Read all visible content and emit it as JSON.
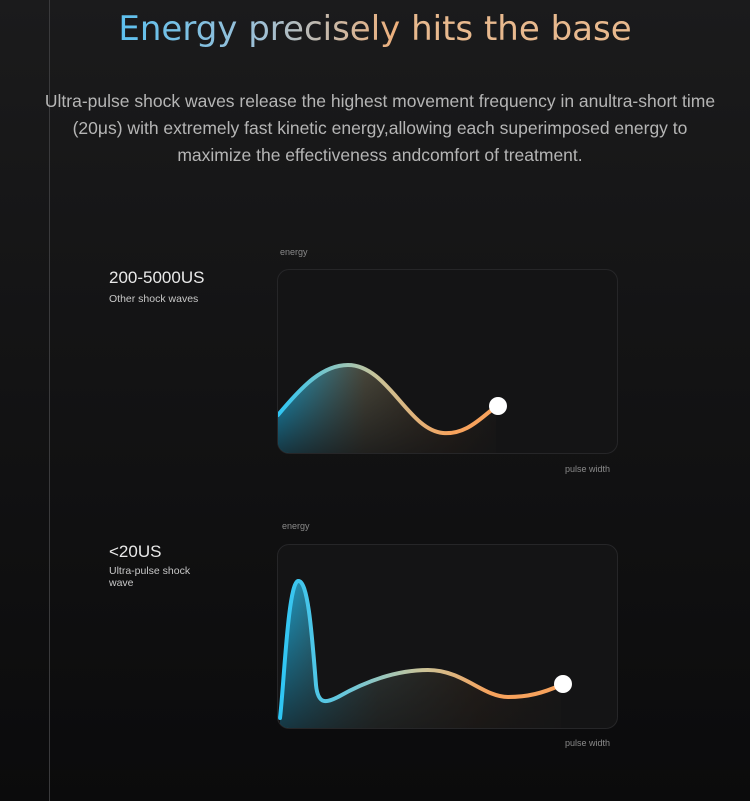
{
  "header": {
    "title_part1": "Energy precisely",
    "title_part2": "hits the base",
    "description": "Ultra-pulse shock waves release the highest movement frequency in anultra-short time (20μs) with extremely fast kinetic energy,allowing each superimposed energy to maximize the effectiveness andcomfort of treatment."
  },
  "charts": [
    {
      "label": "200-5000US",
      "sublabel": "Other shock waves",
      "y_axis": "energy",
      "x_axis": "pulse width"
    },
    {
      "label": "<20US",
      "sublabel": "Ultra-pulse shock wave",
      "y_axis": "energy",
      "x_axis": "pulse width"
    }
  ],
  "colors": {
    "curve_start": "#2ec6f5",
    "curve_mid": "#c9c49a",
    "curve_end": "#f7a25c",
    "marker": "#ffffff"
  }
}
